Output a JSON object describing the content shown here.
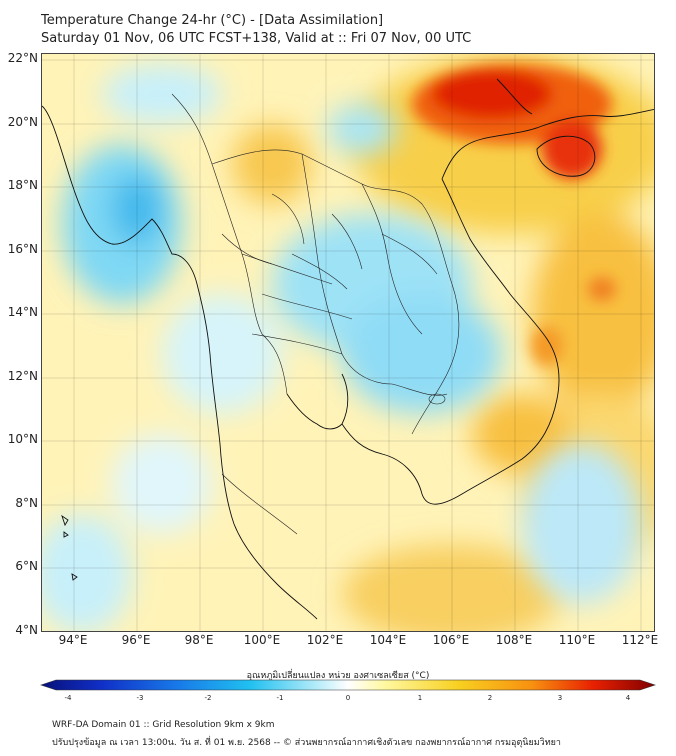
{
  "header": {
    "title": "Temperature Change 24-hr (°C) - [Data Assimilation]",
    "subtitle": "Saturday 01 Nov, 06 UTC FCST+138, Valid at :: Fri 07 Nov, 00 UTC"
  },
  "map": {
    "lat_labels": [
      "22°N",
      "20°N",
      "18°N",
      "16°N",
      "14°N",
      "12°N",
      "10°N",
      "8°N",
      "6°N",
      "4°N"
    ],
    "lon_labels": [
      "94°E",
      "96°E",
      "98°E",
      "100°E",
      "102°E",
      "104°E",
      "106°E",
      "108°E",
      "110°E",
      "112°E"
    ],
    "lat_range": [
      4,
      22.2
    ],
    "lon_range": [
      93,
      112.5
    ]
  },
  "colorbar": {
    "title": "อุณหภูมิเปลี่ยนแปลง หน่วย องศาเซลเซียส (°C)",
    "ticks": [
      "-4",
      "-3",
      "-2",
      "-1",
      "0",
      "1",
      "2",
      "3",
      "4"
    ],
    "range": [
      -4,
      4
    ],
    "colors": [
      "#08107a",
      "#1030c8",
      "#1878e8",
      "#20c0f0",
      "#a8e8f8",
      "#ffffff",
      "#fff8a0",
      "#f8d020",
      "#f89010",
      "#e82000",
      "#800000"
    ]
  },
  "footer": {
    "line1": "WRF-DA Domain 01 :: Grid Resolution 9km x 9km",
    "line2": "ปรับปรุงข้อมูล ณ เวลา 13:00น. วัน ส. ที่ 01 พ.ย. 2568 -- © ส่วนพยากรณ์อากาศเชิงตัวเลข กองพยากรณ์อากาศ กรมอุตุนิยมวิทยา"
  }
}
